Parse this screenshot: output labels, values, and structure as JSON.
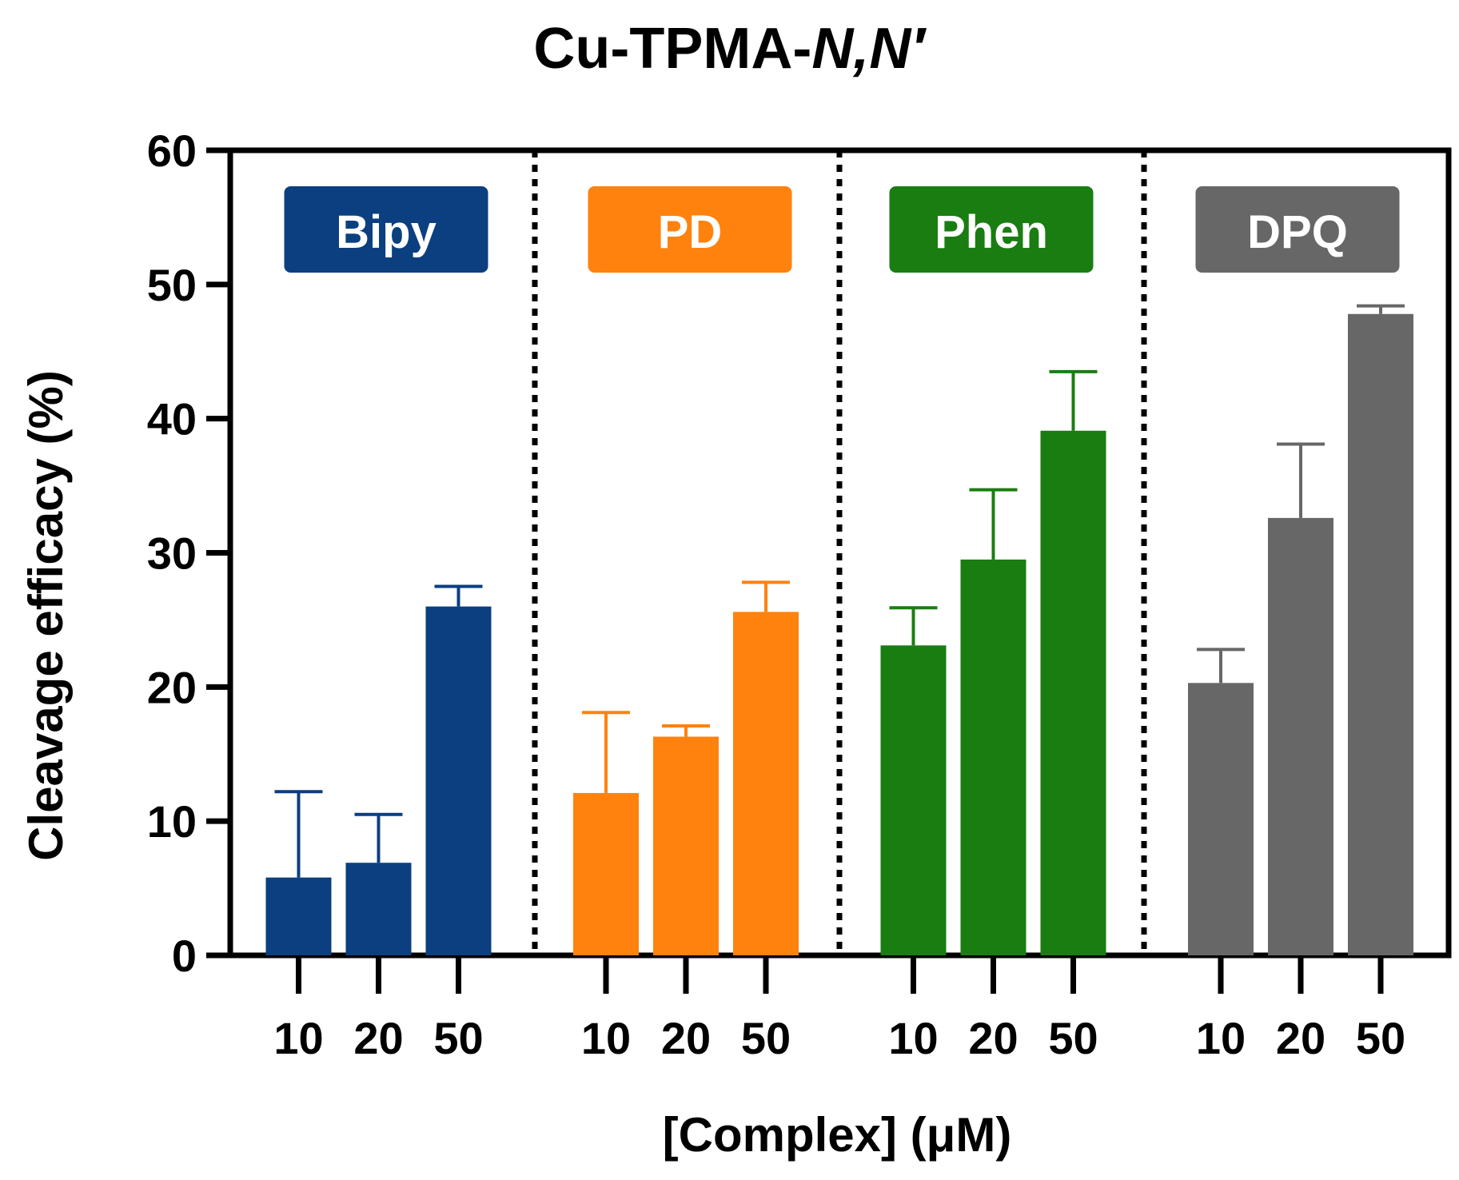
{
  "chart_data": {
    "type": "bar",
    "title": "Cu-TPMA-",
    "title_italic": "N,N′",
    "ylabel": "Cleavage efficacy (%)",
    "xlabel": "[Complex] (μM)",
    "ylim": [
      0,
      60
    ],
    "yticks": [
      "0",
      "10",
      "20",
      "30",
      "40",
      "50",
      "60"
    ],
    "categories": [
      "10",
      "20",
      "50"
    ],
    "groups": [
      {
        "name": "Bipy",
        "color": "#0b3f7f",
        "values": [
          5.8,
          6.9,
          26.0
        ],
        "errors": [
          6.4,
          3.6,
          1.5
        ]
      },
      {
        "name": "PD",
        "color": "#ff820f",
        "values": [
          12.1,
          16.3,
          25.6
        ],
        "errors": [
          6.0,
          0.8,
          2.2
        ]
      },
      {
        "name": "Phen",
        "color": "#1a7d12",
        "values": [
          23.1,
          29.5,
          39.1
        ],
        "errors": [
          2.8,
          5.2,
          4.4
        ]
      },
      {
        "name": "DPQ",
        "color": "#676767",
        "values": [
          20.3,
          32.6,
          47.8
        ],
        "errors": [
          2.5,
          5.5,
          0.6
        ]
      }
    ],
    "group_separators": "dotted",
    "grid": false,
    "legend": "none"
  }
}
